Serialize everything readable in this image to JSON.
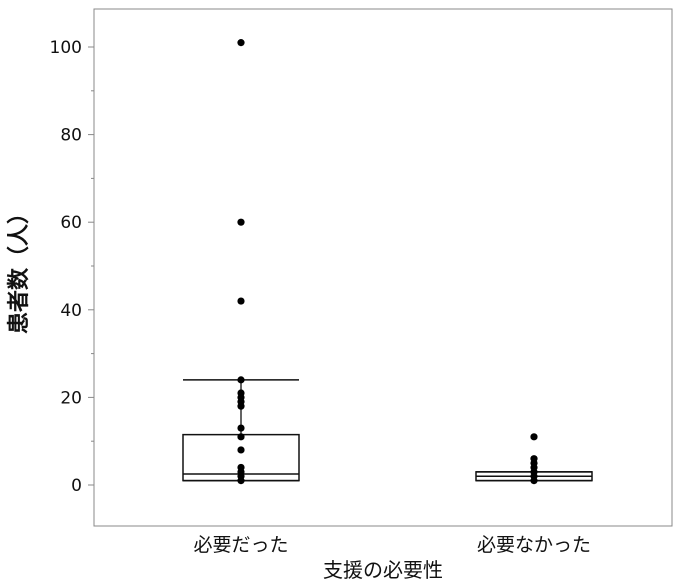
{
  "chart_data": {
    "type": "box",
    "xlabel": "支援の必要性",
    "ylabel": "患者数（人）",
    "ylim": [
      -10,
      110
    ],
    "yticks": [
      0,
      20,
      40,
      60,
      80,
      100
    ],
    "categories": [
      "必要だった",
      "必要なかった"
    ],
    "boxes": [
      {
        "category": "必要だった",
        "whisker_low": 1,
        "q1": 1,
        "median": 2.5,
        "q3": 11.5,
        "whisker_high": 24
      },
      {
        "category": "必要なかった",
        "whisker_low": 1,
        "q1": 1,
        "median": 2,
        "q3": 3,
        "whisker_high": 3
      }
    ],
    "points": [
      {
        "category": "必要だった",
        "values": [
          101,
          60,
          42,
          24,
          21,
          20,
          19,
          18,
          13,
          11,
          8,
          4,
          3,
          2,
          1
        ]
      },
      {
        "category": "必要なかった",
        "values": [
          11,
          6,
          5,
          4,
          3,
          2,
          1
        ]
      }
    ],
    "grid": false,
    "colors": {
      "stroke": "#111111",
      "frame": "#888888",
      "point": "#000000"
    }
  }
}
